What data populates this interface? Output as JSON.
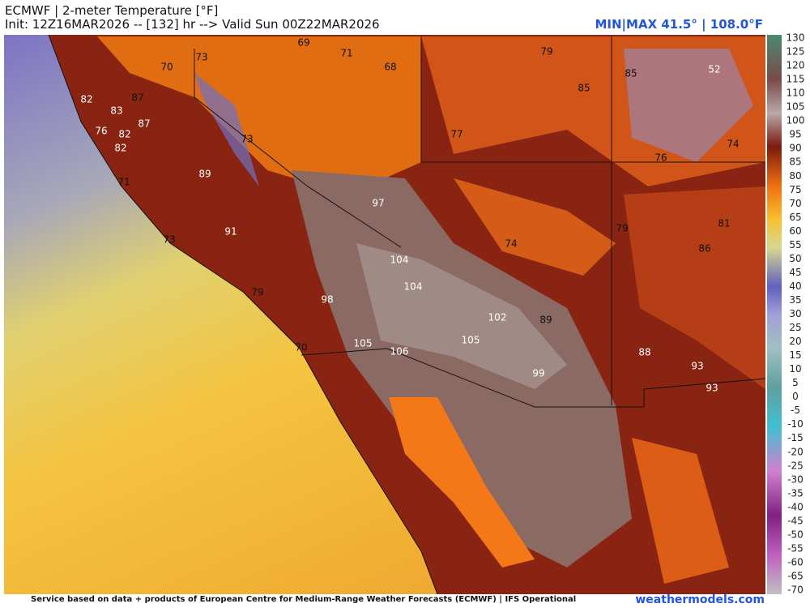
{
  "header": {
    "title": "ECMWF | 2-meter Temperature [°F]",
    "init": "Init: 12Z16MAR2026 -- [132] hr --> Valid Sun 00Z22MAR2026",
    "minmax": "MIN|MAX 41.5° | 108.0°F"
  },
  "colorbar": {
    "labels": [
      130,
      125,
      120,
      115,
      110,
      105,
      100,
      95,
      90,
      85,
      80,
      75,
      70,
      65,
      60,
      55,
      50,
      45,
      40,
      35,
      30,
      25,
      20,
      15,
      10,
      5,
      0,
      -5,
      -10,
      -15,
      -20,
      -25,
      -30,
      -35,
      -40,
      -45,
      -50,
      -55,
      -60,
      -65,
      -70
    ]
  },
  "map": {
    "labels": [
      69,
      71,
      68,
      79,
      73,
      70,
      85,
      85,
      52,
      82,
      83,
      87,
      87,
      76,
      82,
      82,
      77,
      73,
      74,
      76,
      89,
      71,
      97,
      79,
      81,
      91,
      73,
      74,
      86,
      104,
      104,
      79,
      98,
      102,
      89,
      105,
      105,
      106,
      70,
      88,
      93,
      99,
      93
    ]
  },
  "footer": {
    "credit": "Service based on data + products of European Centre for Medium-Range Weather Forecasts (ECMWF) | IFS Operational",
    "site": "weathermodels.com"
  }
}
